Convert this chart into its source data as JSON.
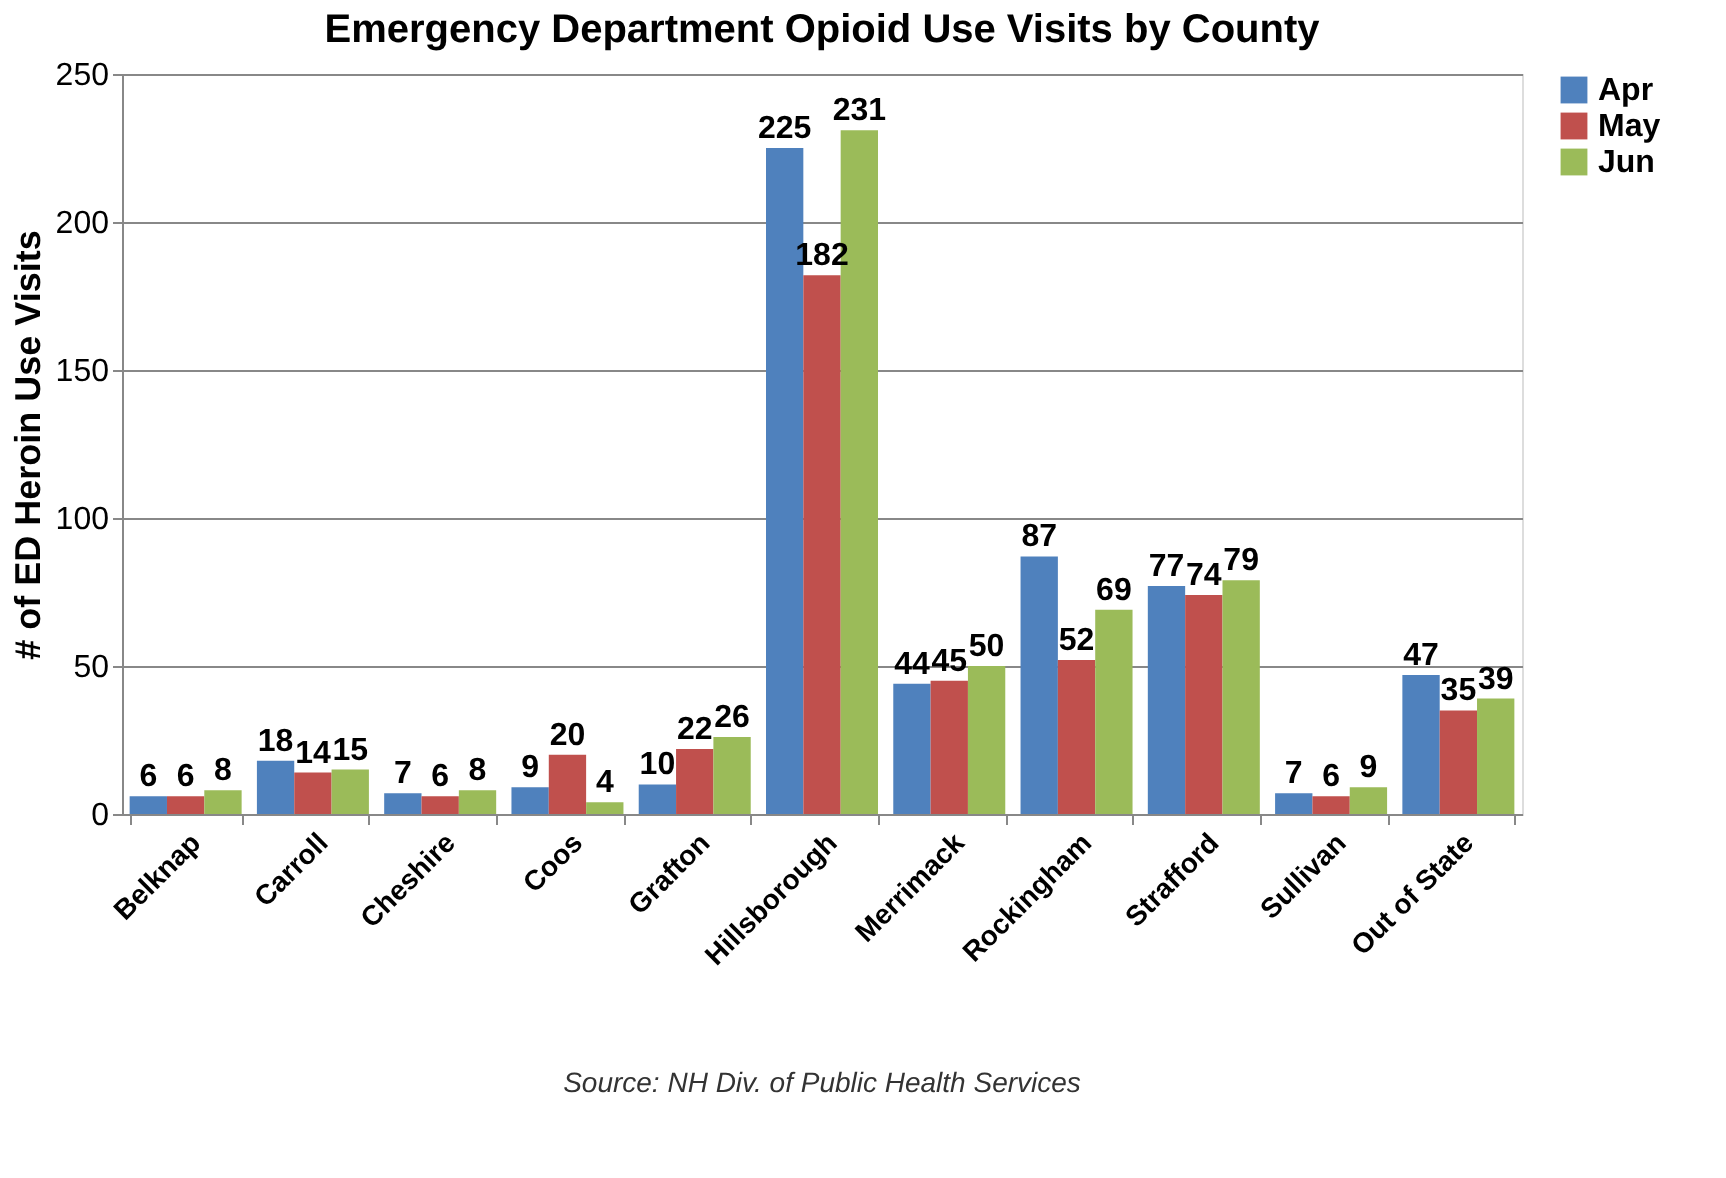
{
  "chart_data": {
    "type": "bar",
    "title": "Emergency Department Opioid Use Visits by County",
    "ylabel": "# of ED Heroin Use Visits",
    "categories": [
      "Belknap",
      "Carroll",
      "Cheshire",
      "Coos",
      "Grafton",
      "Hillsborough",
      "Merrimack",
      "Rockingham",
      "Strafford",
      "Sullivan",
      "Out of State"
    ],
    "series": [
      {
        "name": "Apr",
        "color": "#4f81bd",
        "values": [
          6,
          18,
          7,
          9,
          10,
          225,
          44,
          87,
          77,
          7,
          47
        ]
      },
      {
        "name": "May",
        "color": "#c0504d",
        "values": [
          6,
          14,
          6,
          20,
          22,
          182,
          45,
          52,
          74,
          6,
          35
        ]
      },
      {
        "name": "Jun",
        "color": "#9bbb59",
        "values": [
          8,
          15,
          8,
          4,
          26,
          231,
          50,
          69,
          79,
          9,
          39
        ]
      }
    ],
    "ylim": [
      0,
      250
    ],
    "yticks": [
      0,
      50,
      100,
      150,
      200,
      250
    ],
    "grid": "y",
    "legend": "right",
    "data_labels": true,
    "annotations": [
      "Source: NH Div. of Public Health Services"
    ]
  }
}
